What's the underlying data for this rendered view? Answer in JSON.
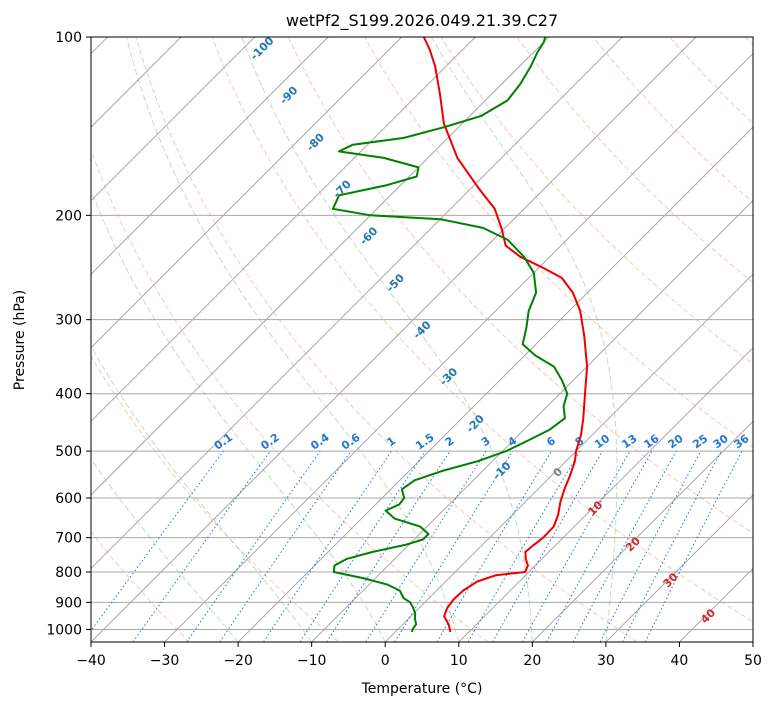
{
  "chart_data": {
    "type": "skew-t",
    "title": "wetPf2_S199.2026.049.21.39.C27",
    "xlabel": "Temperature (°C)",
    "ylabel": "Pressure (hPa)",
    "xlim": [
      -40,
      50
    ],
    "ylim": [
      1050,
      100
    ],
    "y_scale": "log",
    "grid": true,
    "x_ticks": [
      -40,
      -30,
      -20,
      -10,
      0,
      10,
      20,
      30,
      40,
      50
    ],
    "y_ticks": [
      100,
      200,
      300,
      400,
      500,
      600,
      700,
      800,
      900,
      1000
    ],
    "isotherms_c": [
      -130,
      -120,
      -110,
      -100,
      -90,
      -80,
      -70,
      -60,
      -50,
      -40,
      -30,
      -20,
      -10,
      0,
      10,
      20,
      30,
      40,
      50
    ],
    "dry_adiabats": {
      "color": "#f4a582",
      "thetas_c": [
        -50,
        -30,
        -10,
        10,
        30,
        50,
        70,
        90,
        110,
        130,
        150,
        170,
        190,
        210,
        230,
        250,
        270,
        290
      ]
    },
    "moist_adiabats": {
      "color": "#7fbf7b",
      "start_temps_c": [
        -20,
        -10,
        0,
        10,
        20,
        30
      ]
    },
    "mixing_ratio_lines": {
      "color": "#1f77d4",
      "values_gkg": [
        0.1,
        0.2,
        0.4,
        0.6,
        1,
        1.5,
        2,
        3,
        4,
        6,
        8,
        10,
        13,
        16,
        20,
        25,
        30,
        36
      ],
      "labels": [
        "0.1",
        "0.2",
        "0.4",
        "0.6",
        "1",
        "1.5",
        "2",
        "3",
        "4",
        "6",
        "8",
        "10",
        "13",
        "16",
        "20",
        "25",
        "30",
        "36"
      ],
      "top_pressure": 500
    },
    "blue_labels": {
      "color": "#1f77b4",
      "values": [
        "-100",
        "-90",
        "-80",
        "-70",
        "-60",
        "-50",
        "-40",
        "-30",
        "-20",
        "-10"
      ],
      "temps_c": [
        -100,
        -90,
        -80,
        -70,
        -60,
        -50,
        -40,
        -30,
        -20,
        -10
      ]
    },
    "red_labels": {
      "color": "#d62728",
      "values": [
        "0",
        "10",
        "20",
        "30",
        "40"
      ],
      "zero_color": "#7f7f7f"
    },
    "series": [
      {
        "name": "Temperature",
        "color": "#ee0000",
        "points": [
          {
            "p": 1010,
            "t": 7.5
          },
          {
            "p": 980,
            "t": 6.2
          },
          {
            "p": 950,
            "t": 4.5
          },
          {
            "p": 920,
            "t": 3.8
          },
          {
            "p": 890,
            "t": 3.5
          },
          {
            "p": 860,
            "t": 3.6
          },
          {
            "p": 830,
            "t": 4.3
          },
          {
            "p": 810,
            "t": 6.0
          },
          {
            "p": 800,
            "t": 9.5
          },
          {
            "p": 780,
            "t": 9.0
          },
          {
            "p": 760,
            "t": 7.8
          },
          {
            "p": 740,
            "t": 6.8
          },
          {
            "p": 720,
            "t": 7.0
          },
          {
            "p": 700,
            "t": 7.3
          },
          {
            "p": 670,
            "t": 7.2
          },
          {
            "p": 640,
            "t": 6.2
          },
          {
            "p": 610,
            "t": 4.8
          },
          {
            "p": 580,
            "t": 3.6
          },
          {
            "p": 550,
            "t": 2.5
          },
          {
            "p": 520,
            "t": 1.2
          },
          {
            "p": 500,
            "t": 0.0
          },
          {
            "p": 470,
            "t": -1.5
          },
          {
            "p": 440,
            "t": -3.5
          },
          {
            "p": 400,
            "t": -6.6
          },
          {
            "p": 360,
            "t": -10.0
          },
          {
            "p": 320,
            "t": -14.5
          },
          {
            "p": 290,
            "t": -18.5
          },
          {
            "p": 270,
            "t": -22.0
          },
          {
            "p": 255,
            "t": -25.5
          },
          {
            "p": 245,
            "t": -29.5
          },
          {
            "p": 235,
            "t": -34.0
          },
          {
            "p": 225,
            "t": -37.5
          },
          {
            "p": 210,
            "t": -40.5
          },
          {
            "p": 195,
            "t": -44.0
          },
          {
            "p": 180,
            "t": -49.0
          },
          {
            "p": 160,
            "t": -56.0
          },
          {
            "p": 140,
            "t": -62.5
          },
          {
            "p": 125,
            "t": -67.0
          },
          {
            "p": 112,
            "t": -71.5
          },
          {
            "p": 105,
            "t": -74.5
          },
          {
            "p": 100,
            "t": -77.0
          }
        ]
      },
      {
        "name": "Dewpoint",
        "color": "#008000",
        "points": [
          {
            "p": 1010,
            "t": 2.3
          },
          {
            "p": 1000,
            "t": 2.0
          },
          {
            "p": 980,
            "t": 1.8
          },
          {
            "p": 960,
            "t": 0.9
          },
          {
            "p": 940,
            "t": 0.2
          },
          {
            "p": 920,
            "t": -0.8
          },
          {
            "p": 900,
            "t": -2.0
          },
          {
            "p": 885,
            "t": -3.5
          },
          {
            "p": 860,
            "t": -5.0
          },
          {
            "p": 840,
            "t": -7.5
          },
          {
            "p": 820,
            "t": -11.5
          },
          {
            "p": 800,
            "t": -16.5
          },
          {
            "p": 780,
            "t": -17.3
          },
          {
            "p": 760,
            "t": -16.5
          },
          {
            "p": 740,
            "t": -14.0
          },
          {
            "p": 720,
            "t": -10.5
          },
          {
            "p": 705,
            "t": -8.8
          },
          {
            "p": 690,
            "t": -8.8
          },
          {
            "p": 670,
            "t": -11.0
          },
          {
            "p": 650,
            "t": -15.5
          },
          {
            "p": 630,
            "t": -17.8
          },
          {
            "p": 615,
            "t": -16.8
          },
          {
            "p": 600,
            "t": -17.0
          },
          {
            "p": 580,
            "t": -18.5
          },
          {
            "p": 560,
            "t": -18.0
          },
          {
            "p": 540,
            "t": -15.5
          },
          {
            "p": 520,
            "t": -12.0
          },
          {
            "p": 500,
            "t": -9.5
          },
          {
            "p": 480,
            "t": -8.0
          },
          {
            "p": 460,
            "t": -6.5
          },
          {
            "p": 440,
            "t": -6.0
          },
          {
            "p": 420,
            "t": -7.8
          },
          {
            "p": 400,
            "t": -9.0
          },
          {
            "p": 380,
            "t": -11.5
          },
          {
            "p": 360,
            "t": -14.5
          },
          {
            "p": 345,
            "t": -18.5
          },
          {
            "p": 330,
            "t": -21.8
          },
          {
            "p": 310,
            "t": -23.5
          },
          {
            "p": 290,
            "t": -25.5
          },
          {
            "p": 270,
            "t": -27.0
          },
          {
            "p": 250,
            "t": -30.0
          },
          {
            "p": 235,
            "t": -33.5
          },
          {
            "p": 220,
            "t": -38.0
          },
          {
            "p": 210,
            "t": -43.0
          },
          {
            "p": 203,
            "t": -50.0
          },
          {
            "p": 200,
            "t": -60.0
          },
          {
            "p": 195,
            "t": -66.0
          },
          {
            "p": 185,
            "t": -67.0
          },
          {
            "p": 178,
            "t": -62.0
          },
          {
            "p": 172,
            "t": -59.0
          },
          {
            "p": 166,
            "t": -60.0
          },
          {
            "p": 160,
            "t": -66.0
          },
          {
            "p": 156,
            "t": -73.0
          },
          {
            "p": 152,
            "t": -72.0
          },
          {
            "p": 148,
            "t": -66.0
          },
          {
            "p": 142,
            "t": -62.0
          },
          {
            "p": 136,
            "t": -58.5
          },
          {
            "p": 128,
            "t": -57.0
          },
          {
            "p": 120,
            "t": -57.5
          },
          {
            "p": 112,
            "t": -58.5
          },
          {
            "p": 106,
            "t": -59.5
          },
          {
            "p": 102,
            "t": -60.0
          },
          {
            "p": 100,
            "t": -60.5
          }
        ]
      }
    ]
  }
}
